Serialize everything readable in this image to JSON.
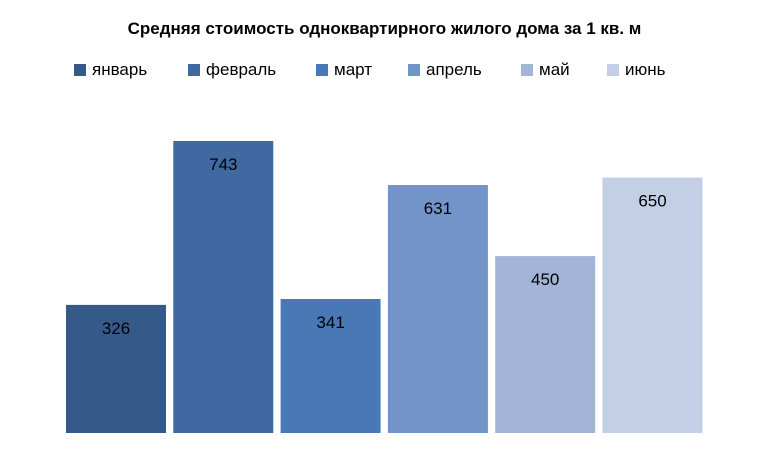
{
  "chart_data": {
    "type": "bar",
    "title": "Средняя  стоимость одноквартирного  жилого дома за 1 кв. м",
    "legend_position": "top",
    "grid": false,
    "ylim": [
      0,
      800
    ],
    "series": [
      {
        "name": "январь",
        "value": 326,
        "color": "#355a8a"
      },
      {
        "name": "февраль",
        "value": 743,
        "color": "#3f69a0"
      },
      {
        "name": "март",
        "value": 341,
        "color": "#4878b6"
      },
      {
        "name": "апрель",
        "value": 631,
        "color": "#7294c8"
      },
      {
        "name": "май",
        "value": 450,
        "color": "#a2b5d6"
      },
      {
        "name": "июнь",
        "value": 650,
        "color": "#c3cfe4"
      }
    ]
  }
}
